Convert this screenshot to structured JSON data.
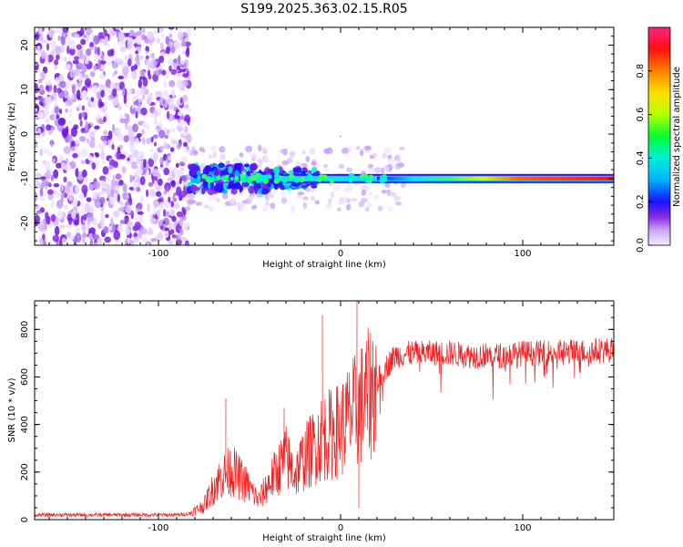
{
  "title": "S199.2025.363.02.15.R05",
  "colors": {
    "snr_line": "#ee2222",
    "axis": "#000000",
    "low_amp": "#7a1ee6"
  },
  "chart_data": [
    {
      "type": "heatmap",
      "name": "spectrogram",
      "xlabel": "Height of straight line (km)",
      "ylabel": "Frequency (Hz)",
      "xlim": [
        -168,
        150
      ],
      "ylim": [
        -25,
        24
      ],
      "xticks": [
        -100,
        0,
        100
      ],
      "yticks": [
        -20,
        -10,
        0,
        10,
        20
      ],
      "colorbar": {
        "label": "Normalized spectral amplitude",
        "range": [
          0,
          1
        ],
        "ticks": [
          0.0,
          0.2,
          0.4,
          0.6,
          0.8
        ],
        "tick_labels": [
          "0.0",
          "0.2",
          "0.4",
          "0.6",
          "0.8"
        ]
      },
      "carrier_frequency_hz": -10,
      "noise_region_x": [
        -168,
        -83
      ],
      "carrier_onset_x": -83
    },
    {
      "type": "line",
      "name": "snr",
      "xlabel": "Height of straight line (km)",
      "ylabel": "SNR (10 * v/v)",
      "xlim": [
        -168,
        150
      ],
      "ylim": [
        0,
        920
      ],
      "xticks": [
        -100,
        0,
        100
      ],
      "yticks": [
        0,
        200,
        400,
        600,
        800
      ],
      "envelope_x": [
        -168,
        -90,
        -83,
        -75,
        -68,
        -60,
        -52,
        -45,
        -38,
        -30,
        -25,
        -20,
        -15,
        -10,
        -5,
        0,
        5,
        10,
        15,
        20,
        25,
        30,
        40,
        50,
        60,
        70,
        80,
        90,
        100,
        110,
        120,
        130,
        140,
        150
      ],
      "envelope_y": [
        20,
        20,
        25,
        60,
        160,
        210,
        150,
        80,
        170,
        260,
        190,
        260,
        300,
        350,
        360,
        380,
        430,
        470,
        520,
        580,
        640,
        690,
        700,
        700,
        700,
        690,
        690,
        690,
        700,
        700,
        705,
        705,
        710,
        715
      ],
      "spikes": [
        {
          "x": -63,
          "y": 510
        },
        {
          "x": -31,
          "y": 470
        },
        {
          "x": -10,
          "y": 860
        },
        {
          "x": 9,
          "y": 920
        },
        {
          "x": 10,
          "y": 50
        }
      ]
    }
  ]
}
